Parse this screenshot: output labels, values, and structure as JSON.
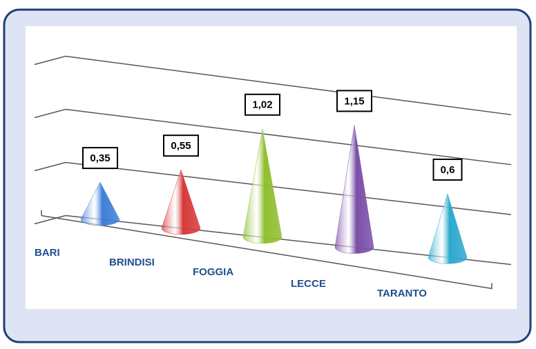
{
  "chart_data": {
    "type": "cone",
    "categories": [
      "BARI",
      "BRINDISI",
      "FOGGIA",
      "LECCE",
      "TARANTO"
    ],
    "values": [
      0.35,
      0.55,
      1.02,
      1.15,
      0.6
    ],
    "value_labels": [
      "0,35",
      "0,55",
      "1,02",
      "1,15",
      "0,6"
    ],
    "colors": [
      "#3f7fd6",
      "#d63a3a",
      "#8fbf2f",
      "#7b4fa8",
      "#2ea9cf"
    ],
    "ylim": [
      0,
      1.5
    ],
    "yticks": [
      0,
      0.5,
      1,
      1.5
    ],
    "grid": true
  }
}
